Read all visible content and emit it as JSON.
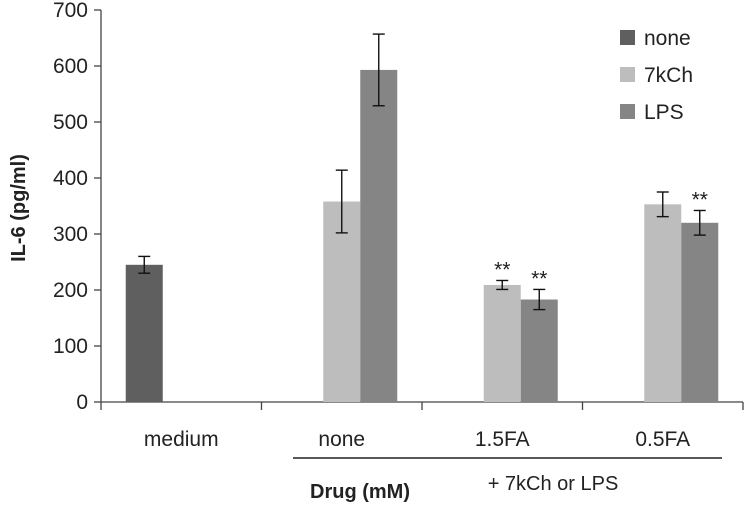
{
  "chart_data": {
    "type": "bar",
    "ylabel": "IL-6 (pg/ml)",
    "xlabel": "Drug (mM)",
    "group_note": "+ 7kCh or LPS",
    "ylim": [
      0,
      700
    ],
    "yticks": [
      0,
      100,
      200,
      300,
      400,
      500,
      600,
      700
    ],
    "grid": false,
    "legend_position": "top-right",
    "categories": [
      "medium",
      "none",
      "1.5FA",
      "0.5FA"
    ],
    "series": [
      {
        "name": "none",
        "color": "#5f5f5f",
        "values": [
          245,
          null,
          null,
          null
        ],
        "errors": [
          15,
          null,
          null,
          null
        ]
      },
      {
        "name": "7kCh",
        "color": "#bdbdbd",
        "values": [
          null,
          358,
          209,
          353
        ],
        "errors": [
          null,
          56,
          8,
          22
        ]
      },
      {
        "name": "LPS",
        "color": "#858585",
        "values": [
          null,
          593,
          183,
          320
        ],
        "errors": [
          null,
          64,
          18,
          22
        ]
      }
    ],
    "annotations": [
      {
        "category": "1.5FA",
        "series": "7kCh",
        "text": "**"
      },
      {
        "category": "1.5FA",
        "series": "LPS",
        "text": "**"
      },
      {
        "category": "0.5FA",
        "series": "LPS",
        "text": "**"
      }
    ]
  }
}
